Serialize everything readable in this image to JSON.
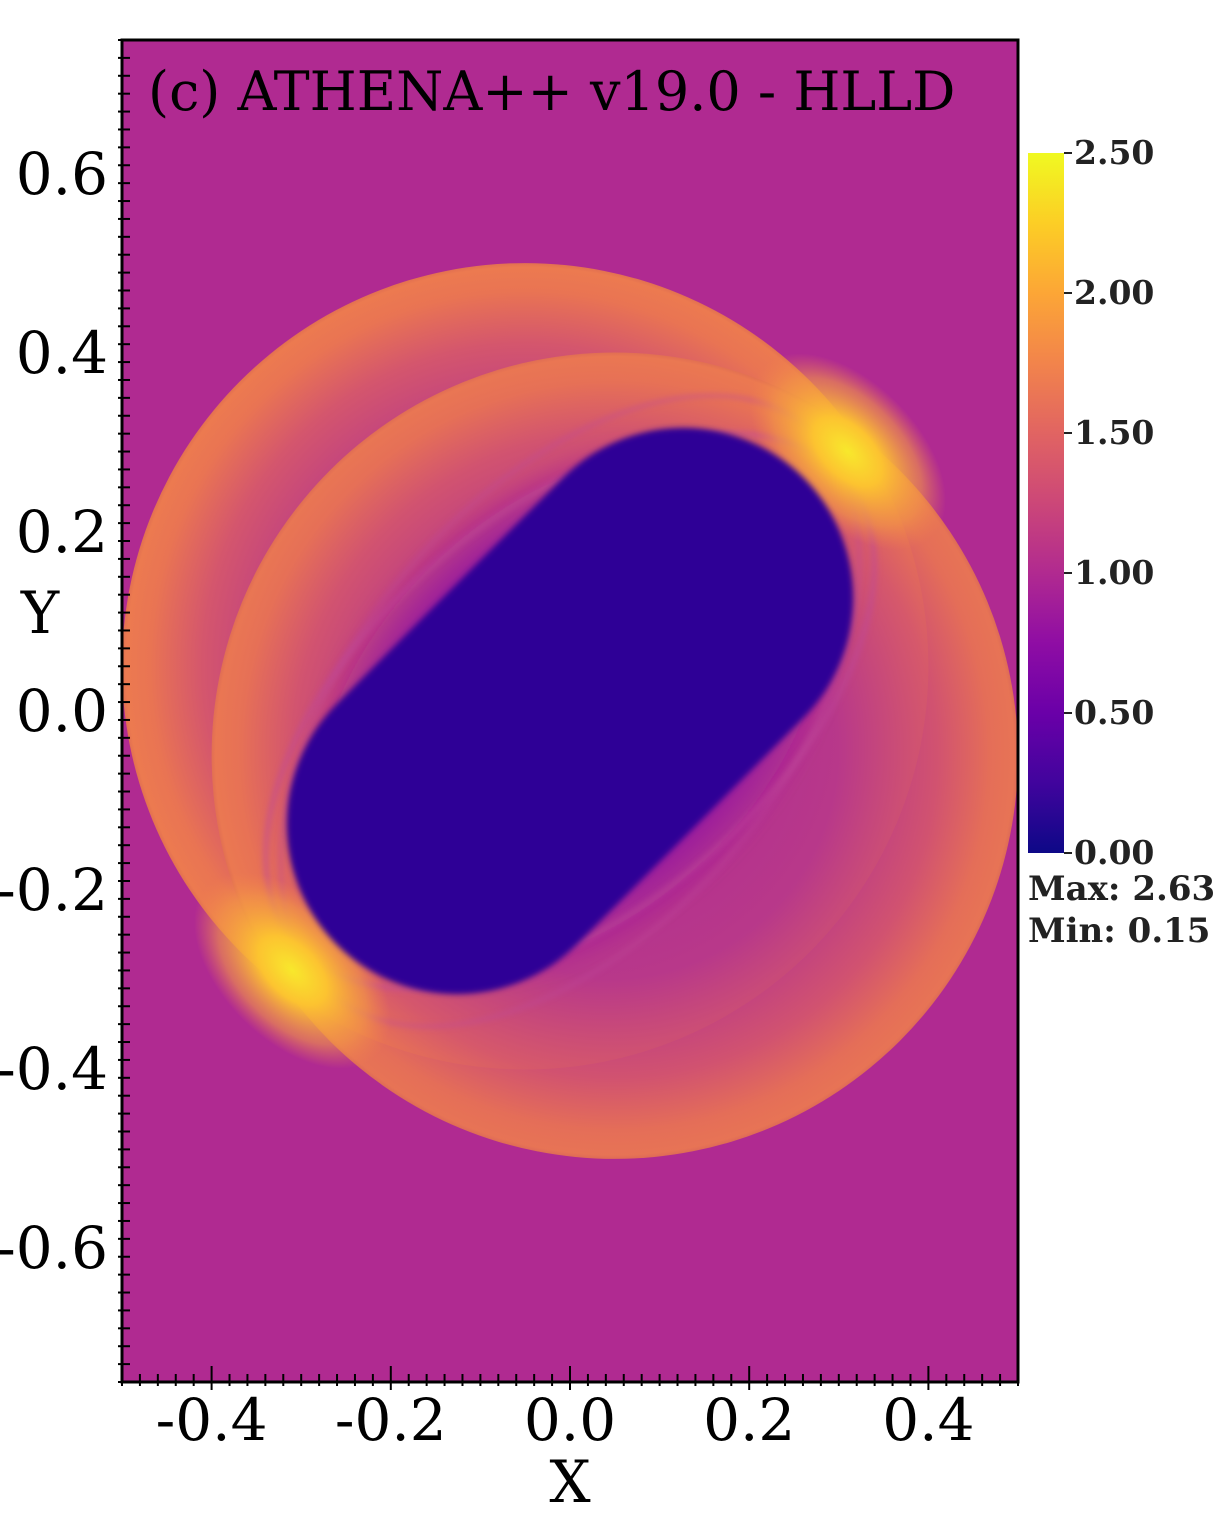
{
  "chart_data": {
    "type": "heatmap",
    "title": "(c) ATHENA++ v19.0 - HLLD",
    "xlabel": "X",
    "ylabel": "Y",
    "xlim": [
      -0.5,
      0.5
    ],
    "ylim": [
      -0.75,
      0.75
    ],
    "x_ticks": [
      -0.4,
      -0.2,
      0.0,
      0.2,
      0.4
    ],
    "y_ticks": [
      0.6,
      0.4,
      0.2,
      0.0,
      -0.2,
      -0.4,
      -0.6
    ],
    "x_tick_labels": [
      "-0.4",
      "-0.2",
      "0.0",
      "0.2",
      "0.4"
    ],
    "y_tick_labels": [
      "0.6",
      "0.4",
      "0.2",
      "0.0",
      "-0.2",
      "-0.4",
      "-0.6"
    ],
    "colormap": "plasma",
    "colorbar": {
      "range": [
        0.0,
        2.5
      ],
      "ticks": [
        2.5,
        2.0,
        1.5,
        1.0,
        0.5,
        0.0
      ],
      "tick_labels": [
        "2.50",
        "2.00",
        "1.50",
        "1.00",
        "0.50",
        "0.00"
      ]
    },
    "max_label": "Max: 2.63",
    "min_label": "Min: 0.15",
    "background_value": 1.0,
    "features": [
      {
        "kind": "circle-ring",
        "center": [
          -0.05,
          0.05
        ],
        "radius": 0.45,
        "value": 1.6
      },
      {
        "kind": "circle-ring",
        "center": [
          0.05,
          -0.05
        ],
        "radius": 0.45,
        "value": 1.6
      },
      {
        "kind": "bright-spot",
        "center": [
          0.31,
          0.29
        ],
        "value": 2.5
      },
      {
        "kind": "bright-spot",
        "center": [
          -0.31,
          -0.29
        ],
        "value": 2.5
      },
      {
        "kind": "low-density-core",
        "center": [
          0.0,
          0.0
        ],
        "value": 0.15
      }
    ]
  },
  "colors": {
    "background": "#b02a91",
    "ring": "#e7704f",
    "inner_purple": "#8a0ba6",
    "core": "#2f0596",
    "bright": "#f8e32a"
  }
}
